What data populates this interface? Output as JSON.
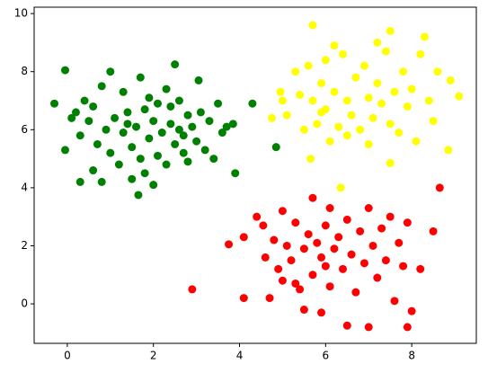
{
  "chart_data": {
    "type": "scatter",
    "xlim": [
      -0.77,
      9.5
    ],
    "ylim": [
      -1.36,
      10.22
    ],
    "xticks": [
      0,
      2,
      4,
      6,
      8
    ],
    "yticks": [
      0,
      2,
      4,
      6,
      8,
      10
    ],
    "series": [
      {
        "color": "#008000",
        "x": [
          -0.3,
          -0.05,
          -0.05,
          0.3,
          0.1,
          0.2,
          0.4,
          0.5,
          0.3,
          0.6,
          0.8,
          0.7,
          0.9,
          0.6,
          0.8,
          1.0,
          1.1,
          1.2,
          1.3,
          1.3,
          1.4,
          1.5,
          1.5,
          1.6,
          1.65,
          1.7,
          1.7,
          1.8,
          1.8,
          1.9,
          1.9,
          2.0,
          2.0,
          2.1,
          2.1,
          2.2,
          2.3,
          2.3,
          2.4,
          2.5,
          2.5,
          2.6,
          2.6,
          2.7,
          2.8,
          2.8,
          2.9,
          3.0,
          3.05,
          3.1,
          3.2,
          3.3,
          3.4,
          3.5,
          3.6,
          3.7,
          3.9,
          3.85,
          4.3,
          4.85,
          1.0,
          2.4,
          1.4,
          2.7
        ],
        "values": [
          6.9,
          8.05,
          5.3,
          4.2,
          6.4,
          6.6,
          7.0,
          6.3,
          5.8,
          6.8,
          7.5,
          5.5,
          6.0,
          4.6,
          4.2,
          5.2,
          6.4,
          4.8,
          5.9,
          7.3,
          6.6,
          5.4,
          4.3,
          6.1,
          3.75,
          7.8,
          5.0,
          6.7,
          4.5,
          5.7,
          7.1,
          6.3,
          4.1,
          5.1,
          6.9,
          5.9,
          7.4,
          4.8,
          6.2,
          8.25,
          5.5,
          7.0,
          6.0,
          5.8,
          6.5,
          4.9,
          6.1,
          5.6,
          7.7,
          6.6,
          5.3,
          6.3,
          5.0,
          6.9,
          5.9,
          6.1,
          4.5,
          6.2,
          6.9,
          5.4,
          8.0,
          6.8,
          6.2,
          5.2
        ]
      },
      {
        "color": "#ffff00",
        "x": [
          4.75,
          4.95,
          5.0,
          5.1,
          5.3,
          5.4,
          5.5,
          5.6,
          5.65,
          5.7,
          5.7,
          5.8,
          5.9,
          6.0,
          6.0,
          6.1,
          6.2,
          6.3,
          6.35,
          6.4,
          6.5,
          6.5,
          6.6,
          6.7,
          6.8,
          6.9,
          7.0,
          7.0,
          7.1,
          7.2,
          7.3,
          7.4,
          7.5,
          7.5,
          7.5,
          7.6,
          7.7,
          7.8,
          7.9,
          8.0,
          8.1,
          8.2,
          8.3,
          8.4,
          8.5,
          8.6,
          8.85,
          8.9,
          9.1,
          6.2,
          7.2,
          5.9
        ],
        "values": [
          6.4,
          7.3,
          7.0,
          6.5,
          8.0,
          7.2,
          6.0,
          8.2,
          5.0,
          9.6,
          7.0,
          6.2,
          7.6,
          8.4,
          6.7,
          5.6,
          7.3,
          6.1,
          4.0,
          8.6,
          7.0,
          5.8,
          6.5,
          7.8,
          6.0,
          8.2,
          7.1,
          5.5,
          6.4,
          7.6,
          6.9,
          8.7,
          9.4,
          4.85,
          6.2,
          7.3,
          5.9,
          8.0,
          6.8,
          7.4,
          5.6,
          8.6,
          9.2,
          7.0,
          6.3,
          8.0,
          5.3,
          7.7,
          7.15,
          8.9,
          9.0,
          6.6
        ]
      },
      {
        "color": "#ff0000",
        "x": [
          2.9,
          3.75,
          4.1,
          4.1,
          4.4,
          4.55,
          4.6,
          4.7,
          4.8,
          4.9,
          5.0,
          5.0,
          5.1,
          5.2,
          5.3,
          5.4,
          5.5,
          5.5,
          5.6,
          5.7,
          5.7,
          5.8,
          5.9,
          5.9,
          6.0,
          6.1,
          6.1,
          6.2,
          6.3,
          6.4,
          6.5,
          6.5,
          6.6,
          6.7,
          6.8,
          6.9,
          7.0,
          7.0,
          7.1,
          7.2,
          7.3,
          7.4,
          7.5,
          7.6,
          7.7,
          7.8,
          7.9,
          7.9,
          8.0,
          8.2,
          8.5,
          8.65,
          6.0,
          5.3
        ],
        "values": [
          0.5,
          2.05,
          0.2,
          2.3,
          3.0,
          2.7,
          1.6,
          0.2,
          2.2,
          1.2,
          3.2,
          0.8,
          2.0,
          1.5,
          2.8,
          0.5,
          -0.2,
          1.9,
          2.4,
          3.65,
          1.0,
          2.1,
          -0.3,
          1.6,
          2.7,
          0.6,
          3.3,
          1.9,
          2.3,
          1.2,
          -0.75,
          2.9,
          1.7,
          0.4,
          2.5,
          1.4,
          -0.8,
          3.3,
          2.0,
          0.9,
          2.6,
          1.5,
          3.0,
          0.1,
          2.1,
          1.3,
          -0.8,
          2.8,
          -0.25,
          1.2,
          2.5,
          4.0,
          1.3,
          0.7
        ]
      }
    ]
  }
}
